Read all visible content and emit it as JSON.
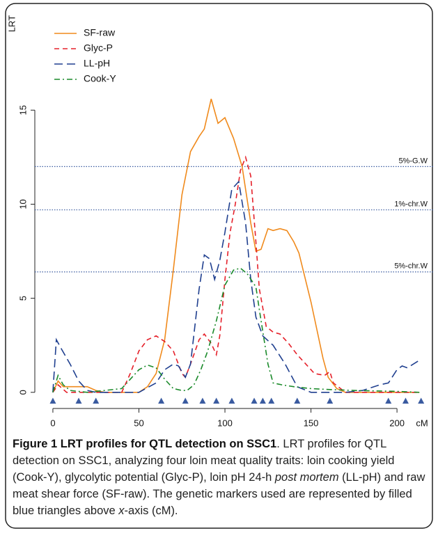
{
  "chart_data": {
    "type": "line",
    "ylabel": "LRT",
    "xlabel": "cM",
    "xlim": [
      -10.5,
      221
    ],
    "ylim": [
      -0.6,
      20.3
    ],
    "xticks": [
      0,
      50,
      100,
      150,
      200
    ],
    "yticks": [
      0,
      5,
      10,
      15
    ],
    "legend": "top-left",
    "series": [
      {
        "name": "SF-raw",
        "color": "#f08a1c",
        "dash": "none",
        "x": [
          0,
          3,
          6,
          10,
          20,
          25,
          30,
          50,
          55,
          60,
          65,
          70,
          75,
          80,
          85,
          88,
          92,
          96,
          100,
          105,
          110,
          115,
          118,
          121,
          125,
          128,
          132,
          136,
          140,
          143,
          150,
          157,
          160,
          165,
          170,
          213
        ],
        "values": [
          0,
          0.6,
          0.3,
          0.3,
          0.3,
          0.1,
          0,
          0,
          0.3,
          1,
          2.8,
          6.5,
          10.5,
          12.8,
          13.6,
          14,
          15.6,
          14.3,
          14.6,
          13.5,
          12,
          9,
          7.5,
          7.6,
          8.7,
          8.6,
          8.7,
          8.6,
          8,
          7.4,
          4.8,
          1.8,
          0.8,
          0.2,
          0,
          0
        ]
      },
      {
        "name": "Glyc-P",
        "color": "#e5202a",
        "dash": "7 5",
        "x": [
          0,
          3,
          8,
          40,
          45,
          50,
          55,
          60,
          65,
          70,
          75,
          77,
          80,
          85,
          88,
          92,
          95,
          97,
          100,
          103,
          106,
          109,
          112,
          115,
          118,
          120,
          124,
          128,
          132,
          137,
          142,
          147,
          152,
          158,
          161,
          163,
          170,
          213
        ],
        "values": [
          0,
          0.4,
          0,
          0,
          1,
          2.2,
          2.8,
          3,
          2.7,
          2.2,
          1,
          0.8,
          1.5,
          2.8,
          3.1,
          2.6,
          2,
          3,
          6,
          8.5,
          10,
          11.8,
          12.5,
          11.5,
          8,
          5.5,
          3.5,
          3.2,
          3.1,
          2.6,
          2,
          1.5,
          1,
          0.9,
          1.1,
          0.5,
          0,
          0
        ]
      },
      {
        "name": "LL-pH",
        "color": "#1f3f8f",
        "dash": "12 6",
        "x": [
          0,
          2,
          5,
          10,
          15,
          20,
          25,
          50,
          60,
          65,
          70,
          73,
          77,
          80,
          85,
          88,
          91,
          94,
          97,
          100,
          104,
          108,
          112,
          115,
          118,
          122,
          128,
          135,
          142,
          150,
          170,
          180,
          190,
          195,
          200,
          203,
          206,
          213
        ],
        "values": [
          0,
          2.8,
          2.3,
          1.5,
          0.6,
          0.1,
          0,
          0,
          0.5,
          1.2,
          1.5,
          1.4,
          0.8,
          1.5,
          5.5,
          7.3,
          7.1,
          6,
          7,
          8.5,
          10.8,
          11.2,
          9,
          6,
          4,
          3,
          2.5,
          1.5,
          0.3,
          0,
          0,
          0.1,
          0.4,
          0.5,
          1.2,
          1.4,
          1.3,
          1.7
        ]
      },
      {
        "name": "Cook-Y",
        "color": "#1a8a2a",
        "dash": "8 4 2 4",
        "x": [
          0,
          3,
          6,
          10,
          20,
          40,
          45,
          50,
          55,
          60,
          65,
          70,
          75,
          78,
          82,
          86,
          90,
          95,
          100,
          105,
          109,
          113,
          118,
          120,
          125,
          128,
          133,
          140,
          150,
          160,
          175,
          200,
          213
        ],
        "values": [
          0,
          0.9,
          0.4,
          0.1,
          0,
          0.2,
          0.7,
          1.2,
          1.45,
          1.3,
          0.7,
          0.2,
          0.1,
          0.1,
          0.4,
          1.2,
          2.2,
          3.8,
          5.7,
          6.5,
          6.6,
          6.3,
          5.6,
          4.4,
          1.5,
          0.5,
          0.4,
          0.3,
          0.2,
          0.15,
          0.1,
          0.05,
          0
        ]
      }
    ],
    "thresholds": [
      {
        "label": "5%-G.W",
        "value": 12.0
      },
      {
        "label": "1%-chr.W",
        "value": 9.7
      },
      {
        "label": "5%-chr.W",
        "value": 6.4
      }
    ],
    "threshold_color": "#3a5ba0",
    "markers": {
      "color": "#3a5ba0",
      "y": -0.45,
      "x": [
        0,
        15,
        25,
        63,
        77,
        87,
        95,
        104,
        117,
        122,
        127,
        142,
        161,
        195,
        205,
        214
      ]
    }
  },
  "caption": {
    "title": "Figure 1 LRT profiles for QTL detection on SSC1",
    "body": [
      ". LRT profiles for QTL detection on SSC1, analyzing four loin meat quality traits: loin cooking yield (Cook-Y), glycolytic potential (Glyc-P), loin pH 24-h ",
      "post mortem",
      " (LL-pH) and raw meat shear force (SF-raw). The genetic markers used are represented by filled blue triangles above ",
      "x",
      "-axis (cM)."
    ]
  }
}
